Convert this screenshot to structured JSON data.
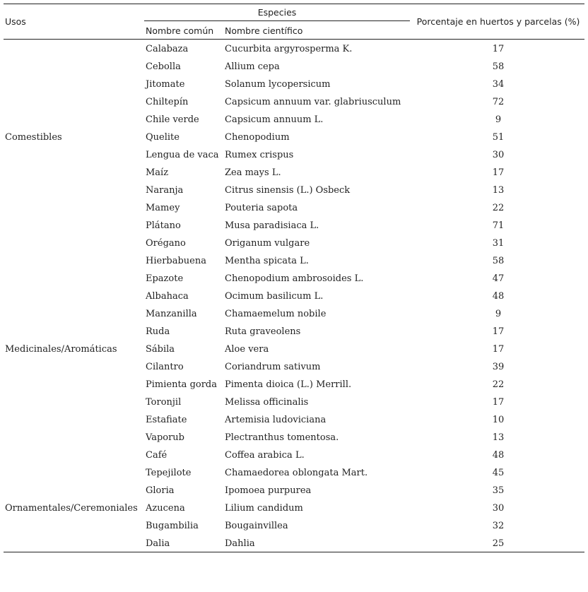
{
  "headers": {
    "uses": "Usos",
    "species": "Especies",
    "common": "Nombre común",
    "scientific": "Nombre científico",
    "percent": "Porcentaje en huertos y parcelas (%)"
  },
  "groups": [
    {
      "use": "Comestibles",
      "species": [
        {
          "common": "Calabaza",
          "scientific": "Cucurbita argyrosperma K.",
          "percent": 17
        },
        {
          "common": "Cebolla",
          "scientific": "Allium cepa",
          "percent": 58
        },
        {
          "common": "Jitomate",
          "scientific": "Solanum lycopersicum",
          "percent": 34
        },
        {
          "common": "Chiltepín",
          "scientific": "Capsicum annuum var. glabriusculum",
          "percent": 72
        },
        {
          "common": "Chile verde",
          "scientific": "Capsicum annuum L.",
          "percent": 9
        },
        {
          "common": "Quelite",
          "scientific": "Chenopodium",
          "percent": 51
        },
        {
          "common": "Lengua de vaca",
          "scientific": "Rumex crispus",
          "percent": 30
        },
        {
          "common": "Maíz",
          "scientific": "Zea mays L.",
          "percent": 17
        },
        {
          "common": "Naranja",
          "scientific": "Citrus sinensis (L.) Osbeck",
          "percent": 13
        },
        {
          "common": "Mamey",
          "scientific": "Pouteria sapota",
          "percent": 22
        },
        {
          "common": "Plátano",
          "scientific": "Musa paradisiaca L.",
          "percent": 71
        }
      ]
    },
    {
      "use": "Medicinales/Aromáticas",
      "species": [
        {
          "common": "Orégano",
          "scientific": "Origanum vulgare",
          "percent": 31
        },
        {
          "common": "Hierbabuena",
          "scientific": "Mentha spicata L.",
          "percent": 58
        },
        {
          "common": "Epazote",
          "scientific": "Chenopodium ambrosoides L.",
          "percent": 47
        },
        {
          "common": "Albahaca",
          "scientific": "Ocimum basilicum L.",
          "percent": 48
        },
        {
          "common": "Manzanilla",
          "scientific": "Chamaemelum nobile",
          "percent": 9
        },
        {
          "common": "Ruda",
          "scientific": "Ruta graveolens",
          "percent": 17
        },
        {
          "common": "Sábila",
          "scientific": "Aloe vera",
          "percent": 17
        },
        {
          "common": "Cilantro",
          "scientific": "Coriandrum sativum",
          "percent": 39
        },
        {
          "common": "Pimienta gorda",
          "scientific": "Pimenta dioica (L.) Merrill.",
          "percent": 22
        },
        {
          "common": "Toronjil",
          "scientific": "Melissa officinalis",
          "percent": 17
        },
        {
          "common": "Estafiate",
          "scientific": "Artemisia ludoviciana",
          "percent": 10
        },
        {
          "common": "Vaporub",
          "scientific": "Plectranthus tomentosa.",
          "percent": 13
        },
        {
          "common": "Café",
          "scientific": "Coffea arabica L.",
          "percent": 48
        },
        {
          "common": "Tepejilote",
          "scientific": "Chamaedorea oblongata Mart.",
          "percent": 45
        }
      ]
    },
    {
      "use": "Ornamentales/Ceremoniales",
      "species": [
        {
          "common": "Gloria",
          "scientific": "Ipomoea purpurea",
          "percent": 35
        },
        {
          "common": "Azucena",
          "scientific": "Lilium candidum",
          "percent": 30
        },
        {
          "common": "Bugambilia",
          "scientific": "Bougainvillea",
          "percent": 32
        },
        {
          "common": "Dalia",
          "scientific": "Dahlia",
          "percent": 25
        }
      ]
    }
  ]
}
